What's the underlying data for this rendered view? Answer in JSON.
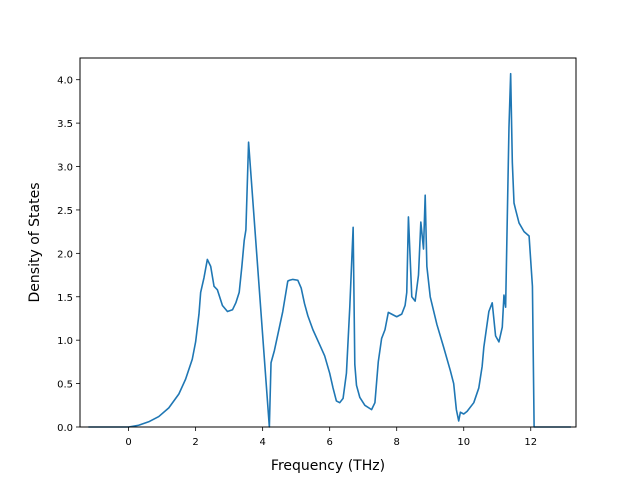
{
  "chart_data": {
    "type": "line",
    "xlabel": "Frequency (THz)",
    "ylabel": "Density of States",
    "xlim": [
      -1.45,
      13.35
    ],
    "ylim": [
      0.0,
      4.25
    ],
    "xticks": [
      0,
      2,
      4,
      6,
      8,
      10,
      12
    ],
    "yticks": [
      0.0,
      0.5,
      1.0,
      1.5,
      2.0,
      2.5,
      3.0,
      3.5,
      4.0
    ],
    "xtick_labels": [
      "0",
      "2",
      "4",
      "6",
      "8",
      "10",
      "12"
    ],
    "ytick_labels": [
      "0.0",
      "0.5",
      "1.0",
      "1.5",
      "2.0",
      "2.5",
      "3.0",
      "3.5",
      "4.0"
    ],
    "grid": false,
    "line_color": "#1f77b4",
    "series": [
      {
        "x": [
          -1.2,
          -0.5,
          0.0,
          0.3,
          0.6,
          0.9,
          1.2,
          1.5,
          1.7,
          1.9,
          2.0,
          2.1,
          2.15,
          2.25,
          2.35,
          2.45,
          2.55,
          2.65,
          2.8,
          2.95,
          3.1,
          3.2,
          3.3,
          3.38,
          3.45,
          3.5,
          3.58,
          4.2,
          4.25,
          4.35,
          4.5,
          4.6,
          4.75,
          4.8,
          4.9,
          5.05,
          5.15,
          5.25,
          5.35,
          5.5,
          5.7,
          5.85,
          6.0,
          6.1,
          6.2,
          6.3,
          6.4,
          6.5,
          6.6,
          6.7,
          6.75,
          6.8,
          6.9,
          7.05,
          7.25,
          7.35,
          7.45,
          7.55,
          7.65,
          7.75,
          8.0,
          8.15,
          8.25,
          8.3,
          8.35,
          8.45,
          8.55,
          8.65,
          8.72,
          8.8,
          8.85,
          8.9,
          9.0,
          9.2,
          9.4,
          9.6,
          9.7,
          9.78,
          9.85,
          9.9,
          10.0,
          10.1,
          10.3,
          10.45,
          10.55,
          10.6,
          10.75,
          10.85,
          10.95,
          11.05,
          11.15,
          11.2,
          11.25,
          11.35,
          11.4,
          11.45,
          11.5,
          11.55,
          11.65,
          11.8,
          11.95,
          12.05,
          12.1,
          13.2
        ],
        "y": [
          0.0,
          0.0,
          0.0,
          0.02,
          0.06,
          0.12,
          0.22,
          0.38,
          0.55,
          0.78,
          0.98,
          1.3,
          1.55,
          1.72,
          1.93,
          1.85,
          1.62,
          1.58,
          1.4,
          1.33,
          1.35,
          1.43,
          1.55,
          1.85,
          2.15,
          2.27,
          3.28,
          0.0,
          0.74,
          0.88,
          1.15,
          1.33,
          1.68,
          1.69,
          1.7,
          1.69,
          1.6,
          1.42,
          1.28,
          1.12,
          0.95,
          0.82,
          0.62,
          0.45,
          0.3,
          0.28,
          0.33,
          0.62,
          1.38,
          2.3,
          0.72,
          0.48,
          0.34,
          0.25,
          0.2,
          0.28,
          0.75,
          1.02,
          1.12,
          1.32,
          1.27,
          1.3,
          1.4,
          1.55,
          2.42,
          1.5,
          1.45,
          1.75,
          2.36,
          2.05,
          2.67,
          1.85,
          1.5,
          1.18,
          0.92,
          0.65,
          0.5,
          0.2,
          0.07,
          0.17,
          0.15,
          0.18,
          0.28,
          0.45,
          0.7,
          0.92,
          1.33,
          1.43,
          1.05,
          0.98,
          1.15,
          1.52,
          1.38,
          3.45,
          4.07,
          3.05,
          2.58,
          2.5,
          2.35,
          2.25,
          2.2,
          1.62,
          0.0,
          0.0
        ]
      }
    ]
  }
}
